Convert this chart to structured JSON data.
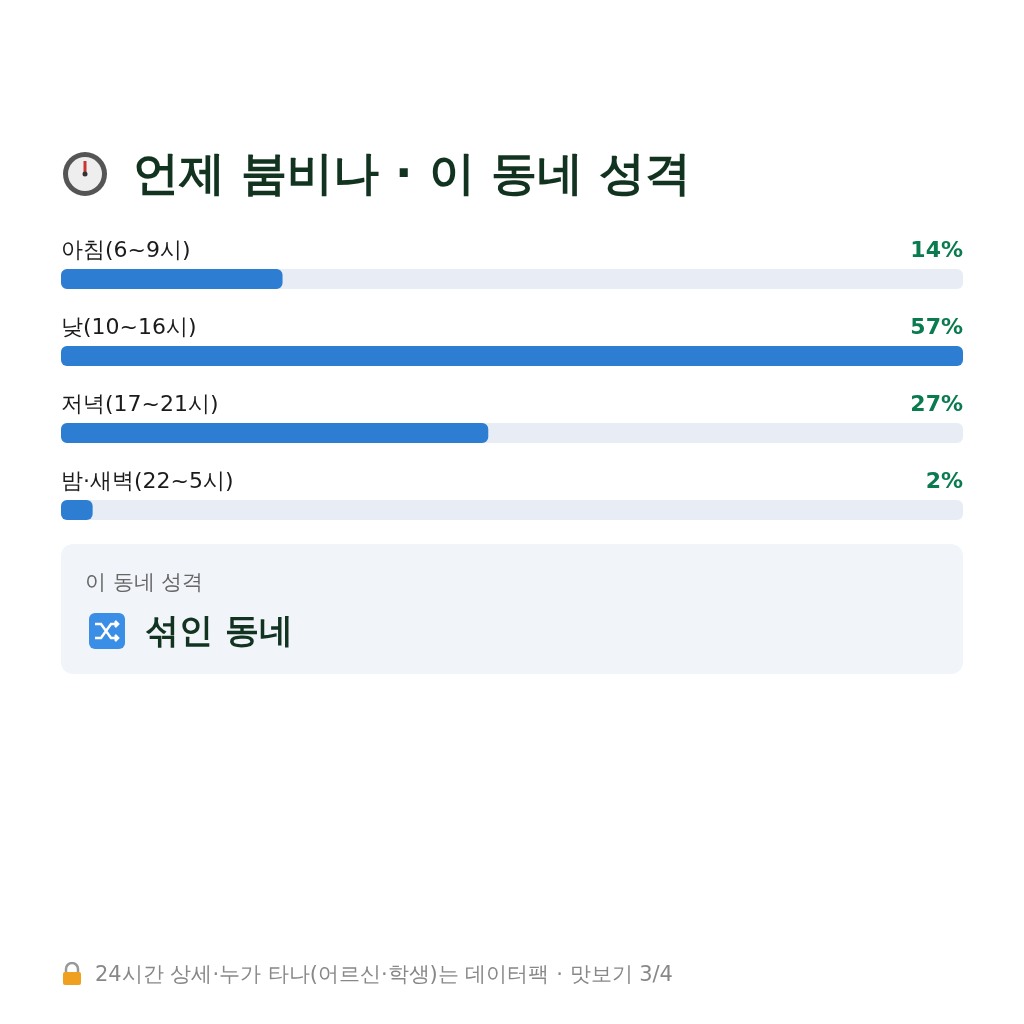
{
  "chart_data": {
    "type": "bar",
    "orientation": "horizontal",
    "title": "언제 붐비나 · 이 동네 성격",
    "categories": [
      "아침(6~9시)",
      "낮(10~16시)",
      "저녁(17~21시)",
      "밤·새벽(22~5시)"
    ],
    "values": [
      14,
      57,
      27,
      2
    ],
    "value_labels": [
      "14%",
      "57%",
      "27%",
      "2%"
    ],
    "color": "#2d7dd2",
    "annotations": [
      "이 동네 성격",
      "섞인 동네",
      "24시간 상세·누가 타나(어르신·학생)는 데이터팩 · 맛보기 3/4"
    ]
  }
}
